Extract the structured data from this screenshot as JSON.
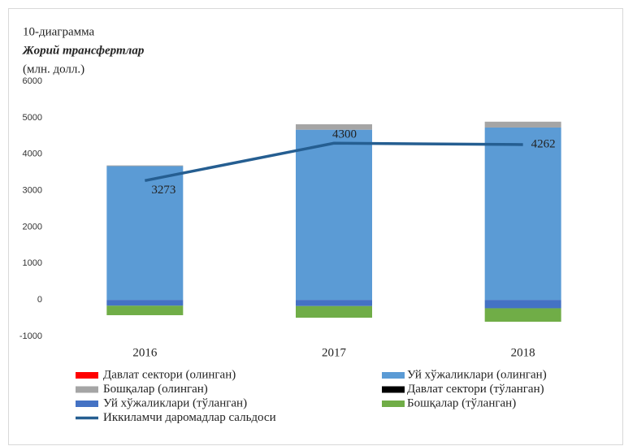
{
  "chart_data": {
    "type": "stacked-bar-line",
    "caption": "10-диаграмма",
    "title": "Жорий трансфертлар",
    "subtitle": "(млн. долл.)",
    "categories": [
      "2016",
      "2017",
      "2018"
    ],
    "ylim": [
      -1000,
      6000
    ],
    "yticks": [
      -1000,
      0,
      1000,
      2000,
      3000,
      4000,
      5000,
      6000
    ],
    "grid": false,
    "series": [
      {
        "name": "Давлат сектори (олинган)",
        "color": "#ff0000",
        "values": [
          0,
          0,
          0
        ],
        "kind": "bar"
      },
      {
        "name": "Уй хўжаликлари (олинган)",
        "color": "#5b9bd5",
        "values": [
          3670,
          4670,
          4730
        ],
        "kind": "bar"
      },
      {
        "name": "Бошқалар (олинган)",
        "color": "#a5a5a5",
        "values": [
          20,
          150,
          160
        ],
        "kind": "bar"
      },
      {
        "name": "Давлат сектори (тўланган)",
        "color": "#000000",
        "values": [
          0,
          0,
          0
        ],
        "kind": "bar"
      },
      {
        "name": "Уй хўжаликлари (тўланган)",
        "color": "#4472c4",
        "values": [
          -160,
          -170,
          -230
        ],
        "kind": "bar"
      },
      {
        "name": "Бошқалар (тўланган)",
        "color": "#70ad47",
        "values": [
          -260,
          -320,
          -370
        ],
        "kind": "bar"
      },
      {
        "name": "Иккиламчи даромадлар сальдоси",
        "color": "#255e91",
        "values": [
          3273,
          4300,
          4262
        ],
        "kind": "line"
      }
    ]
  }
}
